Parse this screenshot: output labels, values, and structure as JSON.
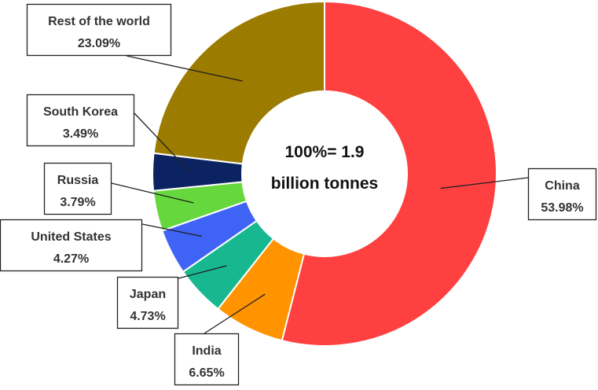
{
  "chart_data": {
    "type": "pie",
    "variant": "donut",
    "center_text": [
      "100%= 1.9",
      "billion  tonnes"
    ],
    "slices": [
      {
        "label": "China",
        "value": 53.98,
        "value_text": "53.98%",
        "color": "#FF4040"
      },
      {
        "label": "India",
        "value": 6.65,
        "value_text": "6.65%",
        "color": "#FF9400"
      },
      {
        "label": "Japan",
        "value": 4.73,
        "value_text": "4.73%",
        "color": "#17B890"
      },
      {
        "label": "United States",
        "value": 4.27,
        "value_text": "4.27%",
        "color": "#3F63F5"
      },
      {
        "label": "Russia",
        "value": 3.79,
        "value_text": "3.79%",
        "color": "#66D83D"
      },
      {
        "label": "South Korea",
        "value": 3.49,
        "value_text": "3.49%",
        "color": "#0B2360"
      },
      {
        "label": "Rest of the world",
        "value": 23.09,
        "value_text": "23.09%",
        "color": "#9C7C00"
      }
    ],
    "start_angle_deg": 0,
    "direction": "clockwise",
    "legend": "none"
  }
}
